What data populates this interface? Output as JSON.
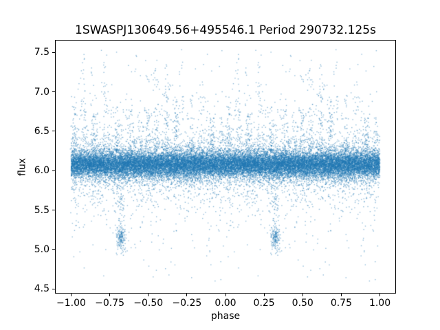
{
  "chart_data": {
    "type": "scatter",
    "title": "1SWASPJ130649.56+495546.1 Period 290732.125s",
    "xlabel": "phase",
    "ylabel": "flux",
    "xlim": [
      -1.1,
      1.1
    ],
    "ylim": [
      4.45,
      7.65
    ],
    "xticks": {
      "values": [
        -1.0,
        -0.75,
        -0.5,
        -0.25,
        0.0,
        0.25,
        0.5,
        0.75,
        1.0
      ],
      "labels": [
        "−1.00",
        "−0.75",
        "−0.50",
        "−0.25",
        "0.00",
        "0.25",
        "0.50",
        "0.75",
        "1.00"
      ]
    },
    "yticks": {
      "values": [
        4.5,
        5.0,
        5.5,
        6.0,
        6.5,
        7.0,
        7.5
      ],
      "labels": [
        "4.5",
        "5.0",
        "5.5",
        "6.0",
        "6.5",
        "7.0",
        "7.5"
      ]
    },
    "grid": false,
    "legend": null,
    "marker_color": "#1f77b4",
    "marker_alpha": 0.5,
    "marker_size_px": 1.4,
    "description": "Phase-folded light curve scatter: dense band of flux around 6.1 across phases -1 to 1, many vertical outlier streaks reaching flux 7.5, sparse scatter down to 4.6, and eclipse-like dense clumps near flux 5.15 at phases 0.32 and -0.68.",
    "scatter_model": {
      "seed": 1306495,
      "core": {
        "n": 14000,
        "mean": 6.08,
        "sd_narrow": 0.08,
        "sd_wide": 0.18,
        "sd_tail": 0.4,
        "frac_narrow": 0.78,
        "frac_wide": 0.16
      },
      "streaks": {
        "phases": [
          0.02,
          0.08,
          0.15,
          0.22,
          0.3,
          0.38,
          0.45,
          0.5,
          0.55,
          0.62,
          0.68,
          0.72,
          0.78,
          0.85,
          0.91,
          0.97
        ],
        "min_count": 30,
        "max_count": 85,
        "phase_jitter": 0.011,
        "top_min": 6.55,
        "top_max": 7.55
      },
      "dips": [
        {
          "phase": 0.322,
          "n": 170,
          "flux_mean": 5.16,
          "flux_sd": 0.085,
          "phase_jitter": 0.016,
          "bridge_n": 50
        }
      ],
      "outliers": {
        "n": 190,
        "flux_min": 4.6,
        "flux_max": 7.55
      }
    }
  }
}
